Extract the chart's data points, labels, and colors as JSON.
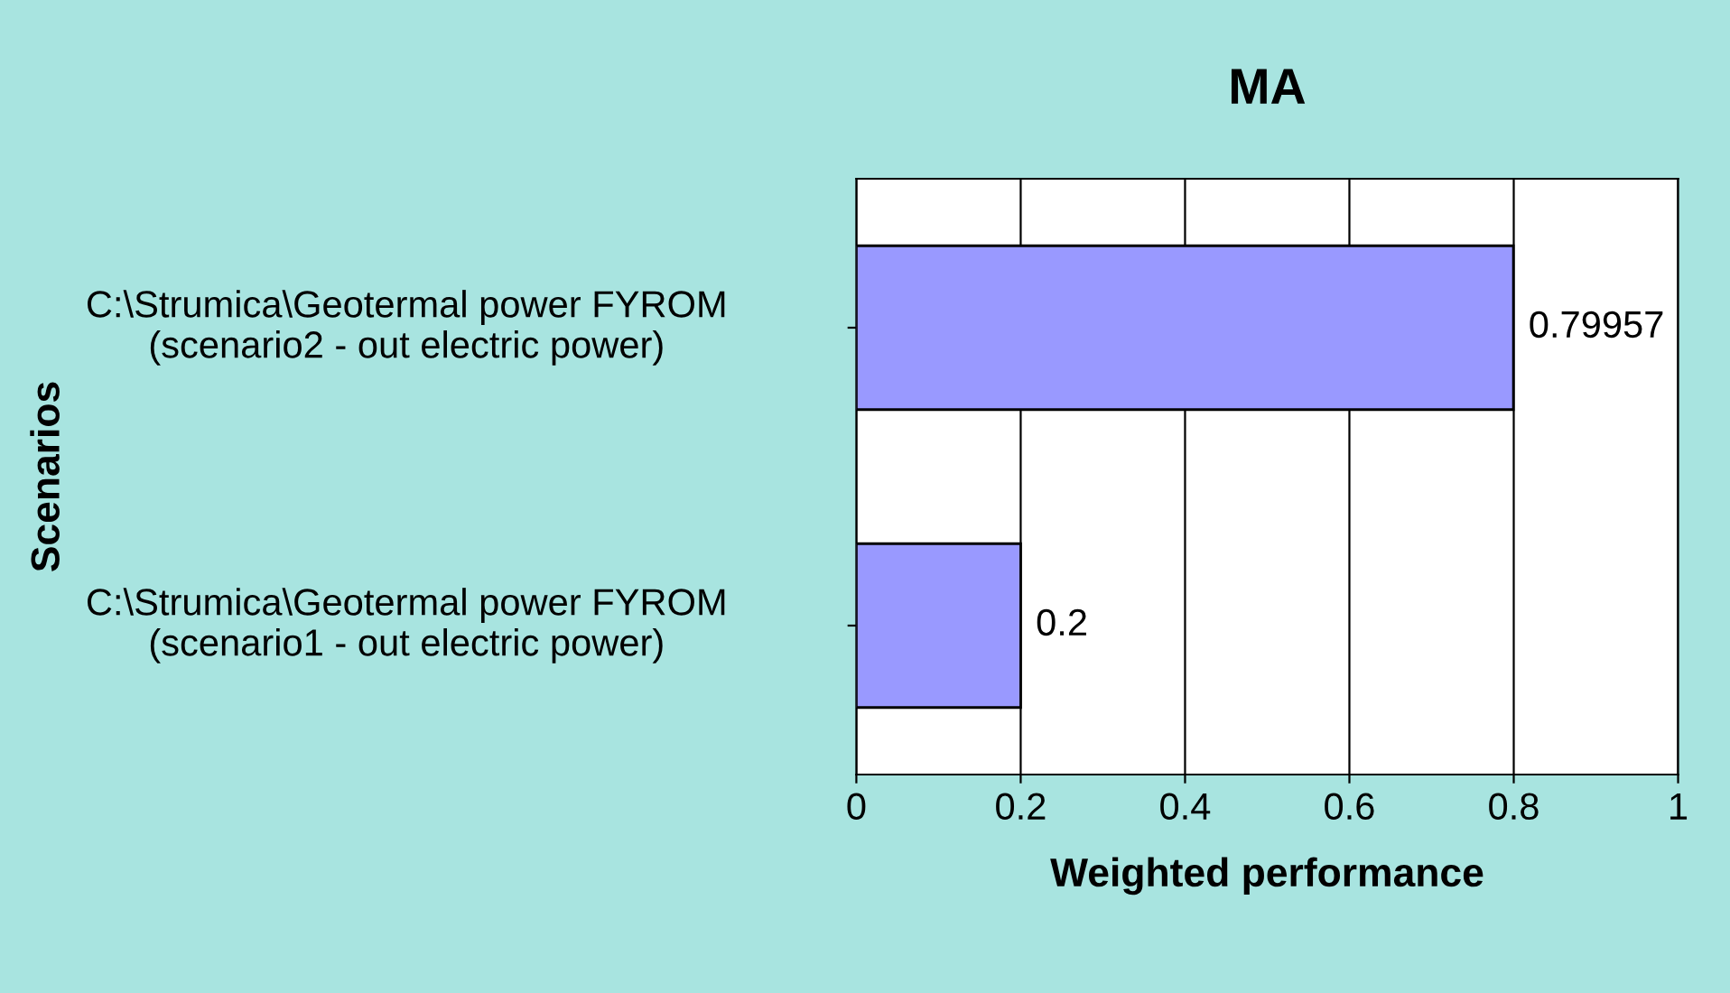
{
  "chart_data": {
    "type": "bar",
    "orientation": "horizontal",
    "title": "MA",
    "xlabel": "Weighted performance",
    "ylabel": "Scenarios",
    "categories": [
      "C:\\Strumica\\Geotermal power FYROM (scenario2 - out electric power)",
      "C:\\Strumica\\Geotermal power FYROM (scenario1 - out electric power)"
    ],
    "values": [
      0.79957,
      0.2
    ],
    "color": "#9999ff",
    "data_labels": true,
    "xlim": [
      0,
      1
    ],
    "xticks": [
      0,
      0.2,
      0.4,
      0.6,
      0.8,
      1
    ],
    "grid": "x"
  }
}
